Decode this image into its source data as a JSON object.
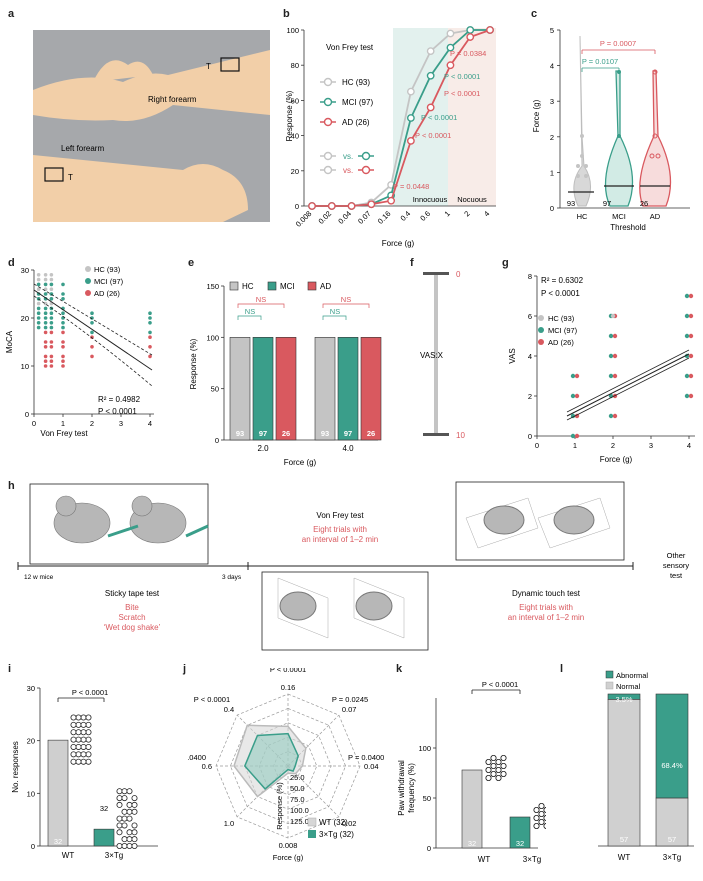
{
  "panel_labels": [
    "a",
    "b",
    "c",
    "d",
    "e",
    "f",
    "g",
    "h",
    "i",
    "j",
    "k",
    "l"
  ],
  "colors": {
    "hc": "#c4c4c4",
    "mci": "#3a9e8a",
    "ad": "#d9595f",
    "wt": "#cfcfcf",
    "tg": "#3a9e8a",
    "innoc": "#e3f1ee",
    "nocu": "#f8ece8",
    "sky": "#a6a8ab"
  },
  "panel_a": {
    "right_label": "Right forearm",
    "left_label": "Left forearm",
    "t": "T"
  },
  "panel_b": {
    "title": "Von Frey test",
    "ylabel": "Response (%)",
    "xlabel": "Force (g)",
    "yticks": [
      "0",
      "20",
      "40",
      "60",
      "80",
      "100"
    ],
    "xticks": [
      "0.008",
      "0.02",
      "0.04",
      "0.07",
      "0.16",
      "0.4",
      "0.6",
      "1",
      "2",
      "4"
    ],
    "legend": [
      {
        "label": "HC (93)"
      },
      {
        "label": "MCI (97)"
      },
      {
        "label": "AD (26)"
      }
    ],
    "vs": "vs.",
    "pvals": [
      "P = 0.0384",
      "P < 0.0001",
      "P < 0.0001",
      "P < 0.0001",
      "P < 0.0001",
      "P = 0.0448"
    ],
    "innocuous": "Innocuous",
    "nocuous": "Nocuous"
  },
  "chart_data": [
    {
      "type": "line",
      "panel": "b",
      "x": [
        "0.008",
        "0.02",
        "0.04",
        "0.07",
        "0.16",
        "0.4",
        "0.6",
        "1",
        "2",
        "4"
      ],
      "series": [
        {
          "name": "HC (93)",
          "values": [
            0,
            0,
            0,
            2,
            12,
            65,
            88,
            98,
            100,
            100
          ]
        },
        {
          "name": "MCI (97)",
          "values": [
            0,
            0,
            0,
            1,
            6,
            50,
            74,
            90,
            100,
            100
          ]
        },
        {
          "name": "AD (26)",
          "values": [
            0,
            0,
            0,
            1,
            3,
            37,
            56,
            80,
            96,
            100
          ]
        }
      ],
      "ylim": [
        0,
        100
      ]
    },
    {
      "type": "bar",
      "panel": "e",
      "categories": [
        "2.0",
        "4.0"
      ],
      "series": [
        {
          "name": "HC",
          "values": [
            100,
            100
          ]
        },
        {
          "name": "MCI",
          "values": [
            100,
            100
          ]
        },
        {
          "name": "AD",
          "values": [
            100,
            100
          ]
        }
      ],
      "ylim": [
        0,
        100
      ]
    },
    {
      "type": "bar",
      "panel": "i",
      "categories": [
        "WT",
        "3×Tg"
      ],
      "values": [
        20.1,
        3.2
      ],
      "ylim": [
        0,
        30
      ]
    },
    {
      "type": "bar",
      "panel": "k",
      "categories": [
        "WT",
        "3×Tg"
      ],
      "values": [
        78,
        31
      ],
      "ylim": [
        0,
        100
      ]
    },
    {
      "type": "bar",
      "panel": "l",
      "categories": [
        "WT",
        "3×Tg"
      ],
      "series": [
        {
          "name": "Abnormal",
          "values": [
            3.5,
            68.4
          ]
        },
        {
          "name": "Normal",
          "values": [
            96.5,
            31.6
          ]
        }
      ],
      "ylim": [
        0,
        100
      ]
    }
  ],
  "panel_c": {
    "ylabel": "Force (g)",
    "xlabel": "Threshold",
    "yticks": [
      "0",
      "1",
      "2",
      "3",
      "4",
      "5"
    ],
    "cats": [
      "HC",
      "MCI",
      "AD"
    ],
    "ns": [
      "93",
      "97",
      "26"
    ],
    "p1": "P = 0.0107",
    "p2": "P = 0.0007"
  },
  "panel_d": {
    "ylabel": "MoCA",
    "xlabel": "Von Frey test",
    "yticks": [
      "0",
      "10",
      "20",
      "30"
    ],
    "xticks": [
      "0",
      "1",
      "2",
      "3",
      "4"
    ],
    "legend": [
      "HC (93)",
      "MCI (97)",
      "AD (26)"
    ],
    "r2": "R² = 0.4982",
    "p": "P < 0.0001"
  },
  "panel_e": {
    "ylabel": "Response (%)",
    "xlabel": "Force (g)",
    "yticks": [
      "0",
      "50",
      "100",
      "150"
    ],
    "cats": [
      "2.0",
      "4.0"
    ],
    "legend": [
      "HC",
      "MCI",
      "AD"
    ],
    "ns": "NS",
    "counts": [
      "93",
      "97",
      "26"
    ]
  },
  "panel_f": {
    "top": "0",
    "bottom": "10",
    "label": "VAS:X"
  },
  "panel_g": {
    "ylabel": "VAS",
    "xlabel": "Force (g)",
    "yticks": [
      "0",
      "2",
      "4",
      "6",
      "8"
    ],
    "xticks": [
      "0",
      "1",
      "2",
      "3",
      "4"
    ],
    "r2": "R² = 0.6302",
    "p": "P < 0.0001",
    "legend": [
      "HC (93)",
      "MCI (97)",
      "AD (26)"
    ]
  },
  "panel_h": {
    "vf_title": "Von Frey test",
    "vf_red": "Eight trials with",
    "vf_red2": "an interval of 1–2 min",
    "left_time": "12 w mice",
    "mid_time": "3 days",
    "other": "Other",
    "sensory": "sensory",
    "test": "test",
    "st_title": "Sticky tape test",
    "st_red1": "Bite",
    "st_red2": "Scratch",
    "st_red3": "‘Wet dog shake’",
    "dt_title": "Dynamic touch test",
    "dt_red1": "Eight trials with",
    "dt_red2": "an interval of 1–2 min"
  },
  "panel_i": {
    "ylabel": "No. responses",
    "yticks": [
      "0",
      "10",
      "20",
      "30"
    ],
    "cats": [
      "WT",
      "3×Tg"
    ],
    "p": "P < 0.0001",
    "n1": "32",
    "n2": "32",
    "n3": "32"
  },
  "panel_j": {
    "axes": [
      "0.16",
      "0.07",
      "0.04",
      "0.02",
      "0.008",
      "1.0",
      "0.6",
      "0.4"
    ],
    "pvals": [
      "P < 0.0001",
      "P = 0.0245",
      "P = 0.0400",
      "P = 0.0400",
      "P < 0.0001"
    ],
    "rticks": [
      "25.0",
      "50.0",
      "75.0",
      "100.0",
      "125.0"
    ],
    "rlabel": "Response (%)",
    "xlabel": "Force (g)",
    "legend": [
      "WT (32)",
      "3×Tg (32)"
    ]
  },
  "panel_k": {
    "ylabel": "Paw withdrawal frequency (%)",
    "ylabel1": "Paw withdrawal",
    "ylabel2": "frequency (%)",
    "yticks": [
      "0",
      "50",
      "100"
    ],
    "cats": [
      "WT",
      "3×Tg"
    ],
    "p": "P < 0.0001",
    "n1": "32",
    "n2": "32"
  },
  "panel_l": {
    "legend": [
      "Abnormal",
      "Normal"
    ],
    "cats": [
      "WT",
      "3×Tg"
    ],
    "wt_pct": "3.5%",
    "tg_pct": "68.4%",
    "n1": "57",
    "n2": "57"
  }
}
